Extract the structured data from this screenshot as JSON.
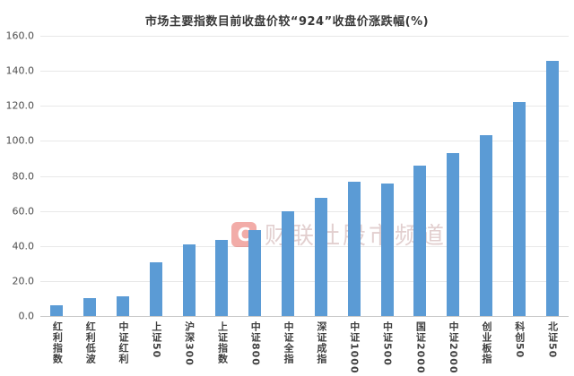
{
  "title": "市场主要指数目前收盘价较“924”收盘价涨跌幅(%)",
  "watermark": {
    "logo_letter": "C",
    "text": "财联社股市频道"
  },
  "colors": {
    "bar": "#5b9bd5",
    "grid": "#e8e8e8",
    "axis_line": "#c9c9c9",
    "title_text": "#383838",
    "tick_text": "#4d4d4d",
    "category_text": "#404040",
    "watermark_logo": "#e23b33",
    "watermark_text": "#bb8f8f"
  },
  "y_axis": {
    "min": 0,
    "max": 160,
    "step": 20,
    "tick_labels": [
      "0.0",
      "20.0",
      "40.0",
      "60.0",
      "80.0",
      "100.0",
      "120.0",
      "140.0",
      "160.0"
    ]
  },
  "chart_data": {
    "type": "bar",
    "title": "市场主要指数目前收盘价较“924”收盘价涨跌幅(%)",
    "categories": [
      "红利指数",
      "红利低波",
      "中证红利",
      "上证50",
      "沪深300",
      "上证指数",
      "中证800",
      "中证全指",
      "深证成指",
      "中证1000",
      "中证500",
      "国证2000",
      "中证2000",
      "创业板指",
      "科创50",
      "北证50"
    ],
    "values": [
      5.9,
      10.0,
      11.5,
      30.7,
      41.0,
      43.4,
      49.0,
      60.0,
      67.6,
      76.8,
      75.9,
      86.0,
      93.0,
      103.2,
      122.4,
      145.5
    ],
    "xlabel": "",
    "ylabel": "",
    "ylim": [
      0,
      160
    ],
    "grid": true,
    "legend": "none",
    "bar_color": "#5b9bd5"
  }
}
